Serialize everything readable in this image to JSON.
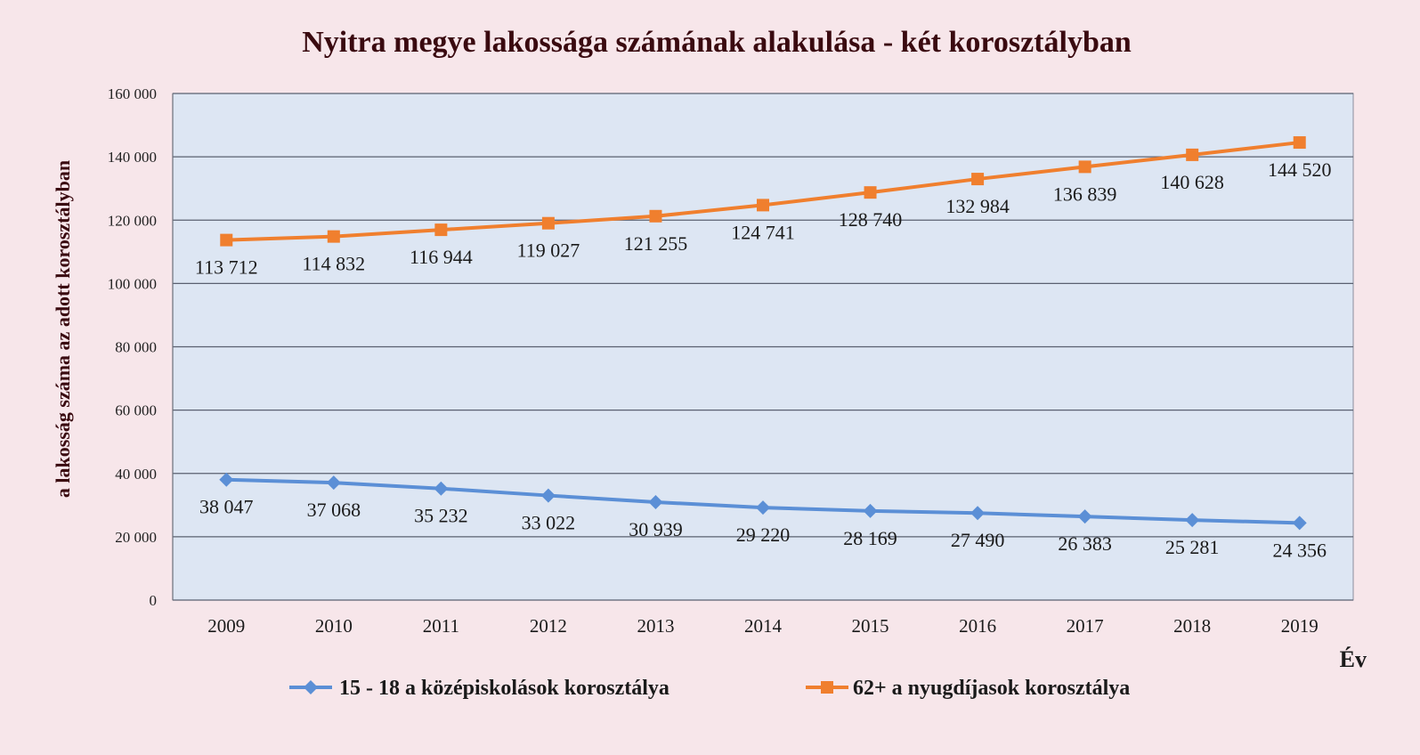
{
  "chart_data": {
    "type": "line",
    "title": "Nyitra megye lakossága számának alakulása - két korosztályban",
    "ylabel": "a lakosság száma az adott korosztályban",
    "xlabel": "Év",
    "categories": [
      "2009",
      "2010",
      "2011",
      "2012",
      "2013",
      "2014",
      "2015",
      "2016",
      "2017",
      "2018",
      "2019"
    ],
    "ylim": [
      0,
      160000
    ],
    "yticks": [
      0,
      20000,
      40000,
      60000,
      80000,
      100000,
      120000,
      140000,
      160000
    ],
    "ytick_labels": [
      "0",
      "20 000",
      "40 000",
      "60 000",
      "80 000",
      "100 000",
      "120 000",
      "140 000",
      "160 000"
    ],
    "grid": true,
    "legend_position": "bottom",
    "series": [
      {
        "name": "15 - 18 a középiskolások korosztálya",
        "color": "#5b8fd6",
        "marker": "diamond",
        "values": [
          38047,
          37068,
          35232,
          33022,
          30939,
          29220,
          28169,
          27490,
          26383,
          25281,
          24356
        ],
        "labels": [
          "38 047",
          "37 068",
          "35 232",
          "33 022",
          "30 939",
          "29 220",
          "28 169",
          "27 490",
          "26 383",
          "25 281",
          "24 356"
        ]
      },
      {
        "name": "62+  a nyugdíjasok korosztálya",
        "color": "#f07f2e",
        "marker": "square",
        "values": [
          113712,
          114832,
          116944,
          119027,
          121255,
          124741,
          128740,
          132984,
          136839,
          140628,
          144520
        ],
        "labels": [
          "113 712",
          "114 832",
          "116 944",
          "119 027",
          "121 255",
          "124 741",
          "128 740",
          "132 984",
          "136 839",
          "140 628",
          "144 520"
        ]
      }
    ],
    "colors": {
      "plot_background": "#dde6f3",
      "page_background": "#f7e6ea",
      "grid": "#5a6070"
    }
  }
}
